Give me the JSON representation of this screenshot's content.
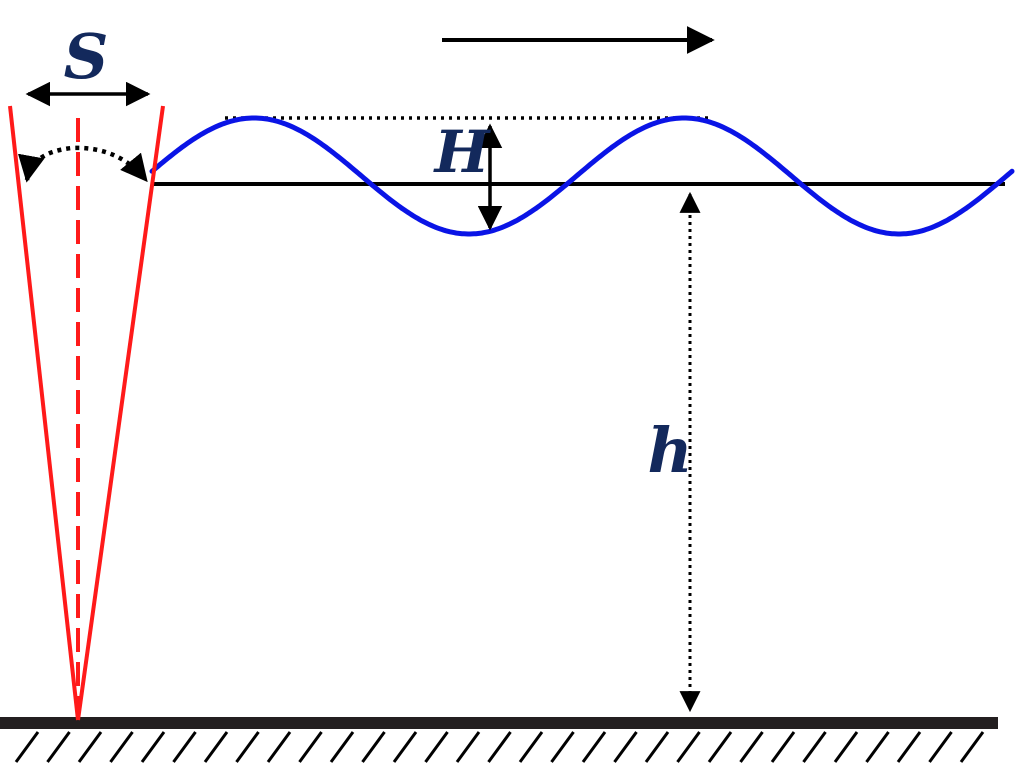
{
  "labels": {
    "stroke": "S",
    "wave_height": "H",
    "water_depth": "h"
  },
  "colors": {
    "paddle": "#ff1a1a",
    "wave": "#0a14e6",
    "ink": "#000000",
    "label": "#13295c",
    "floor": "#231f20",
    "background": "#ffffff"
  },
  "icons": {
    "direction": "right-arrow-icon",
    "swing": "curved-double-arrow-icon",
    "floor": "hatched-seabed-icon"
  }
}
